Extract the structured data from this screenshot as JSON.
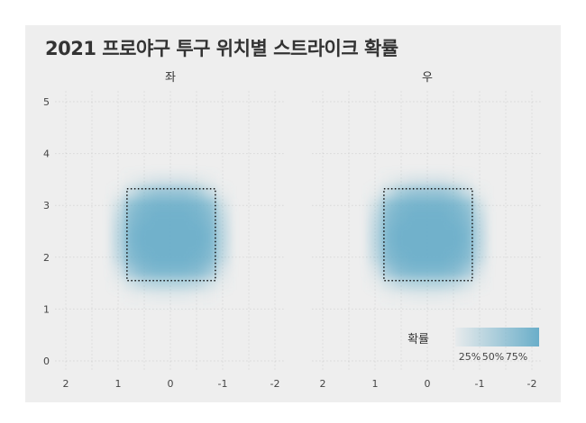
{
  "chart_data": {
    "type": "heatmap",
    "title": "2021 프로야구 투구 위치별 스트라이크 확률",
    "facets": [
      "좌",
      "우"
    ],
    "xlim": [
      2.2,
      -2.2
    ],
    "ylim": [
      -0.2,
      5.2
    ],
    "x_ticks": [
      2,
      1,
      0,
      -1,
      -2
    ],
    "x_tick_labels": [
      "2",
      "1",
      "0",
      "-1",
      "-2"
    ],
    "y_ticks": [
      0,
      1,
      2,
      3,
      4,
      5
    ],
    "y_tick_labels": [
      "0",
      "1",
      "2",
      "3",
      "4",
      "5"
    ],
    "grid": true,
    "strike_zone": {
      "x": [
        0.83,
        -0.86
      ],
      "y": [
        1.55,
        3.32
      ]
    },
    "grid_x": [
      1.5,
      1.25,
      1.0,
      0.75,
      0.5,
      0.25,
      0,
      -0.25,
      -0.5,
      -0.75,
      -1.0,
      -1.25,
      -1.5
    ],
    "grid_y": [
      3.75,
      3.5,
      3.25,
      3.0,
      2.75,
      2.5,
      2.25,
      2.0,
      1.75,
      1.5,
      1.25,
      1.0
    ],
    "probability": [
      [
        0,
        0,
        0,
        0,
        0,
        0,
        0,
        0,
        0,
        0,
        0,
        0,
        0
      ],
      [
        0,
        0,
        0,
        0.05,
        0.1,
        0.15,
        0.15,
        0.15,
        0.1,
        0.05,
        0,
        0,
        0
      ],
      [
        0,
        0,
        0.05,
        0.3,
        0.55,
        0.65,
        0.65,
        0.65,
        0.55,
        0.3,
        0.05,
        0,
        0
      ],
      [
        0,
        0,
        0.2,
        0.7,
        0.85,
        0.9,
        0.9,
        0.9,
        0.85,
        0.7,
        0.2,
        0,
        0
      ],
      [
        0,
        0,
        0.3,
        0.8,
        0.9,
        0.95,
        0.95,
        0.95,
        0.9,
        0.8,
        0.3,
        0,
        0
      ],
      [
        0,
        0,
        0.35,
        0.85,
        0.95,
        0.95,
        0.95,
        0.95,
        0.95,
        0.85,
        0.35,
        0,
        0
      ],
      [
        0,
        0,
        0.35,
        0.85,
        0.95,
        0.95,
        0.95,
        0.95,
        0.95,
        0.85,
        0.35,
        0,
        0
      ],
      [
        0,
        0,
        0.3,
        0.8,
        0.9,
        0.95,
        0.95,
        0.95,
        0.9,
        0.8,
        0.3,
        0,
        0
      ],
      [
        0,
        0,
        0.15,
        0.6,
        0.8,
        0.85,
        0.85,
        0.85,
        0.8,
        0.6,
        0.15,
        0,
        0
      ],
      [
        0,
        0,
        0.05,
        0.2,
        0.35,
        0.4,
        0.4,
        0.4,
        0.35,
        0.2,
        0.05,
        0,
        0
      ],
      [
        0,
        0,
        0,
        0.03,
        0.05,
        0.08,
        0.08,
        0.08,
        0.05,
        0.03,
        0,
        0,
        0
      ],
      [
        0,
        0,
        0,
        0,
        0,
        0,
        0,
        0,
        0,
        0,
        0,
        0,
        0
      ]
    ],
    "legend": {
      "title": "확률",
      "labels": [
        "25%",
        "50%",
        "75%"
      ],
      "values": [
        0.25,
        0.5,
        0.75
      ],
      "position": "bottom-right"
    },
    "colors": {
      "high": "#6aaec9",
      "background": "#eeeeee",
      "grid": "#cccccc"
    }
  }
}
